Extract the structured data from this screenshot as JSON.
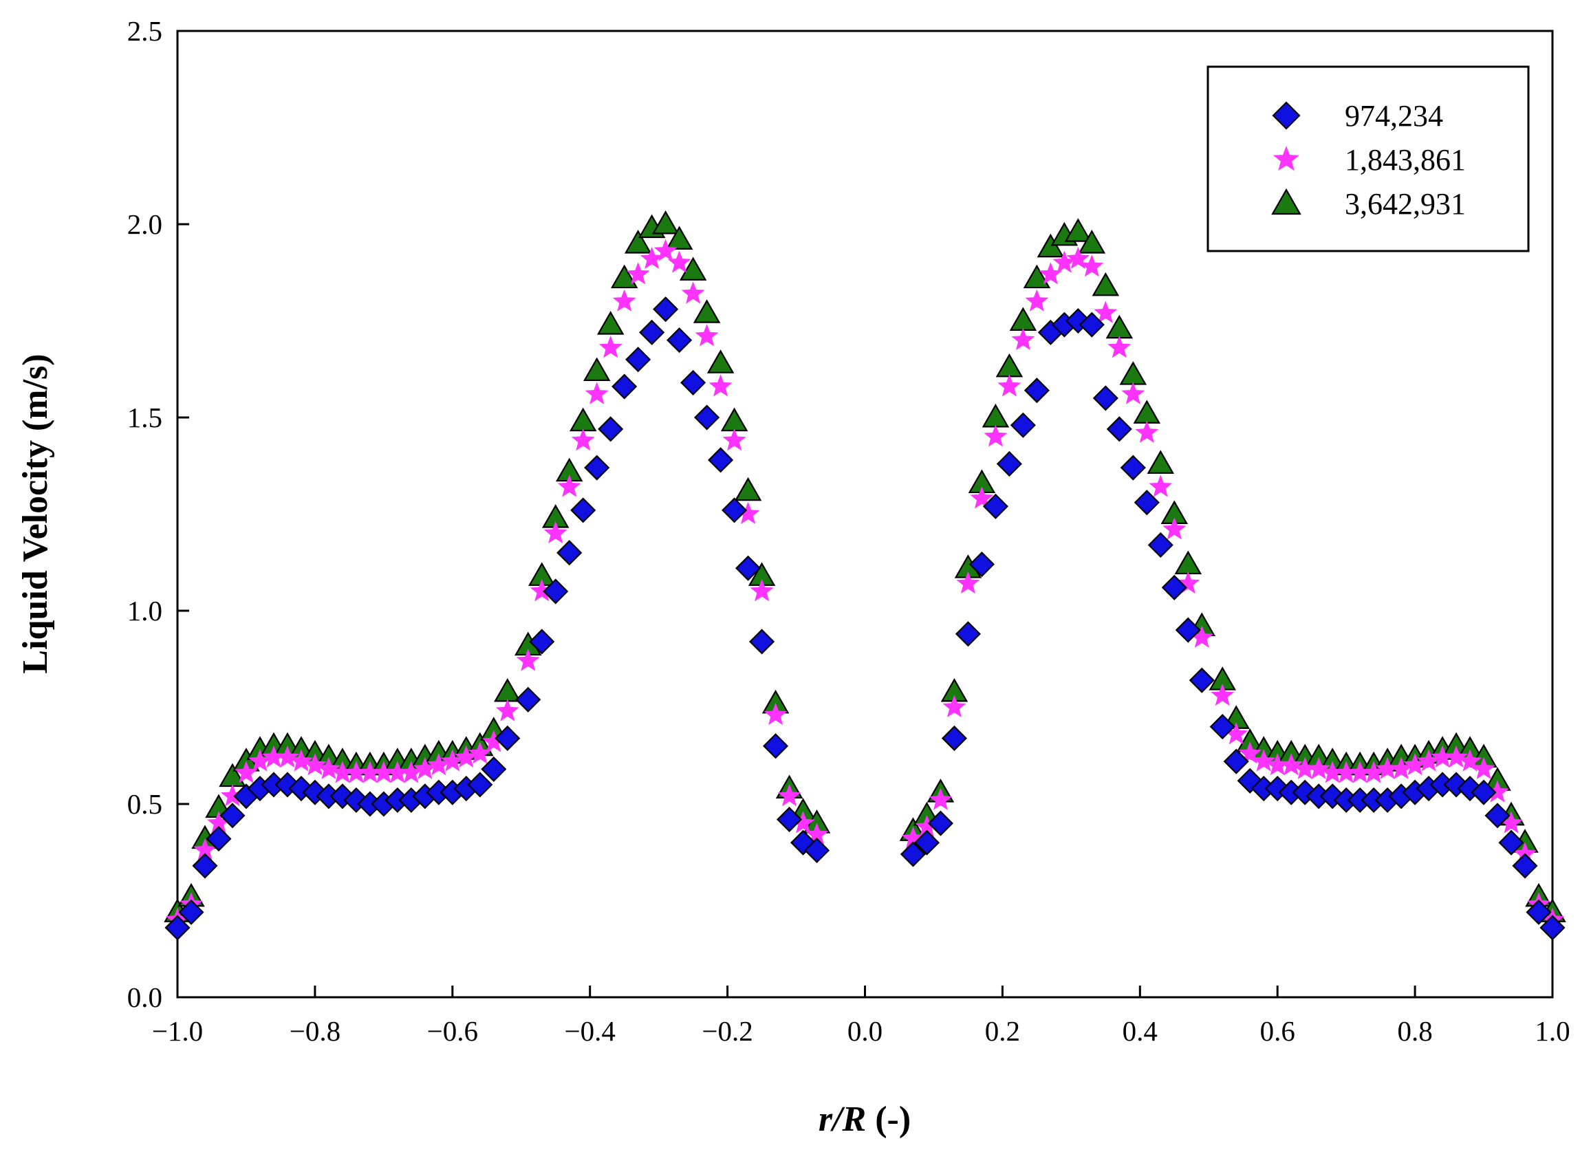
{
  "chart_data": {
    "type": "scatter",
    "title": "",
    "xlabel_italic": "r/R",
    "xlabel_rest": " (-)",
    "ylabel": "Liquid Velocity (m/s)",
    "xlim": [
      -1.0,
      1.0
    ],
    "ylim": [
      0.0,
      2.5
    ],
    "xticks": [
      -1.0,
      -0.8,
      -0.6,
      -0.4,
      -0.2,
      0.0,
      0.2,
      0.4,
      0.6,
      0.8,
      1.0
    ],
    "xtick_labels": [
      "−1.0",
      "−0.8",
      "−0.6",
      "−0.4",
      "−0.2",
      "0.0",
      "0.2",
      "0.4",
      "0.6",
      "0.8",
      "1.0"
    ],
    "yticks": [
      0.0,
      0.5,
      1.0,
      1.5,
      2.0,
      2.5
    ],
    "ytick_labels": [
      "0.0",
      "0.5",
      "1.0",
      "1.5",
      "2.0",
      "2.5"
    ],
    "grid": false,
    "legend_position": "top-right",
    "x": [
      -1.0,
      -0.98,
      -0.96,
      -0.94,
      -0.92,
      -0.9,
      -0.88,
      -0.86,
      -0.84,
      -0.82,
      -0.8,
      -0.78,
      -0.76,
      -0.74,
      -0.72,
      -0.7,
      -0.68,
      -0.66,
      -0.64,
      -0.62,
      -0.6,
      -0.58,
      -0.56,
      -0.54,
      -0.52,
      -0.49,
      -0.47,
      -0.45,
      -0.43,
      -0.41,
      -0.39,
      -0.37,
      -0.35,
      -0.33,
      -0.31,
      -0.29,
      -0.27,
      -0.25,
      -0.23,
      -0.21,
      -0.19,
      -0.17,
      -0.15,
      -0.13,
      -0.11,
      -0.09,
      -0.07,
      0.07,
      0.09,
      0.11,
      0.13,
      0.15,
      0.17,
      0.19,
      0.21,
      0.23,
      0.25,
      0.27,
      0.29,
      0.31,
      0.33,
      0.35,
      0.37,
      0.39,
      0.41,
      0.43,
      0.45,
      0.47,
      0.49,
      0.52,
      0.54,
      0.56,
      0.58,
      0.6,
      0.62,
      0.64,
      0.66,
      0.68,
      0.7,
      0.72,
      0.74,
      0.76,
      0.78,
      0.8,
      0.82,
      0.84,
      0.86,
      0.88,
      0.9,
      0.92,
      0.94,
      0.96,
      0.98,
      1.0
    ],
    "series": [
      {
        "name": "974,234",
        "marker": "diamond",
        "color": "#1010e0",
        "values": [
          0.18,
          0.22,
          0.34,
          0.41,
          0.47,
          0.52,
          0.54,
          0.55,
          0.55,
          0.54,
          0.53,
          0.52,
          0.52,
          0.51,
          0.5,
          0.5,
          0.51,
          0.51,
          0.52,
          0.53,
          0.53,
          0.54,
          0.55,
          0.59,
          0.67,
          0.77,
          0.92,
          1.05,
          1.15,
          1.26,
          1.37,
          1.47,
          1.58,
          1.65,
          1.72,
          1.78,
          1.7,
          1.59,
          1.5,
          1.39,
          1.26,
          1.11,
          0.92,
          0.65,
          0.46,
          0.4,
          0.38,
          0.37,
          0.4,
          0.45,
          0.67,
          0.94,
          1.12,
          1.27,
          1.38,
          1.48,
          1.57,
          1.72,
          1.74,
          1.75,
          1.74,
          1.55,
          1.47,
          1.37,
          1.28,
          1.17,
          1.06,
          0.95,
          0.82,
          0.7,
          0.61,
          0.56,
          0.54,
          0.54,
          0.53,
          0.53,
          0.52,
          0.52,
          0.51,
          0.51,
          0.51,
          0.51,
          0.52,
          0.53,
          0.54,
          0.55,
          0.55,
          0.54,
          0.53,
          0.47,
          0.4,
          0.34,
          0.22,
          0.18
        ]
      },
      {
        "name": "1,843,861",
        "marker": "star",
        "color": "#ff33ff",
        "values": [
          0.2,
          0.24,
          0.38,
          0.45,
          0.52,
          0.58,
          0.61,
          0.62,
          0.62,
          0.61,
          0.6,
          0.59,
          0.58,
          0.58,
          0.58,
          0.58,
          0.58,
          0.58,
          0.59,
          0.6,
          0.61,
          0.62,
          0.63,
          0.66,
          0.74,
          0.87,
          1.05,
          1.2,
          1.32,
          1.44,
          1.56,
          1.68,
          1.8,
          1.87,
          1.91,
          1.93,
          1.9,
          1.82,
          1.71,
          1.58,
          1.44,
          1.25,
          1.05,
          0.73,
          0.52,
          0.45,
          0.42,
          0.41,
          0.44,
          0.51,
          0.75,
          1.07,
          1.29,
          1.45,
          1.58,
          1.7,
          1.8,
          1.87,
          1.9,
          1.91,
          1.89,
          1.77,
          1.68,
          1.56,
          1.46,
          1.32,
          1.21,
          1.07,
          0.93,
          0.78,
          0.68,
          0.63,
          0.61,
          0.6,
          0.6,
          0.59,
          0.59,
          0.58,
          0.58,
          0.58,
          0.58,
          0.59,
          0.59,
          0.6,
          0.61,
          0.62,
          0.62,
          0.61,
          0.59,
          0.53,
          0.45,
          0.37,
          0.24,
          0.2
        ]
      },
      {
        "name": "3,642,931",
        "marker": "triangle",
        "color": "#1a7a10",
        "values": [
          0.22,
          0.26,
          0.41,
          0.49,
          0.57,
          0.61,
          0.64,
          0.65,
          0.65,
          0.64,
          0.63,
          0.62,
          0.61,
          0.6,
          0.6,
          0.6,
          0.61,
          0.61,
          0.62,
          0.63,
          0.63,
          0.64,
          0.65,
          0.69,
          0.79,
          0.91,
          1.09,
          1.24,
          1.36,
          1.49,
          1.62,
          1.74,
          1.86,
          1.95,
          1.99,
          2.0,
          1.96,
          1.88,
          1.77,
          1.64,
          1.49,
          1.31,
          1.09,
          0.76,
          0.54,
          0.48,
          0.45,
          0.43,
          0.47,
          0.53,
          0.79,
          1.11,
          1.33,
          1.5,
          1.63,
          1.75,
          1.86,
          1.94,
          1.97,
          1.98,
          1.95,
          1.84,
          1.73,
          1.61,
          1.51,
          1.38,
          1.25,
          1.12,
          0.96,
          0.82,
          0.72,
          0.66,
          0.64,
          0.63,
          0.63,
          0.62,
          0.62,
          0.61,
          0.6,
          0.6,
          0.6,
          0.61,
          0.62,
          0.62,
          0.63,
          0.64,
          0.65,
          0.64,
          0.62,
          0.56,
          0.47,
          0.4,
          0.26,
          0.22
        ]
      }
    ]
  }
}
